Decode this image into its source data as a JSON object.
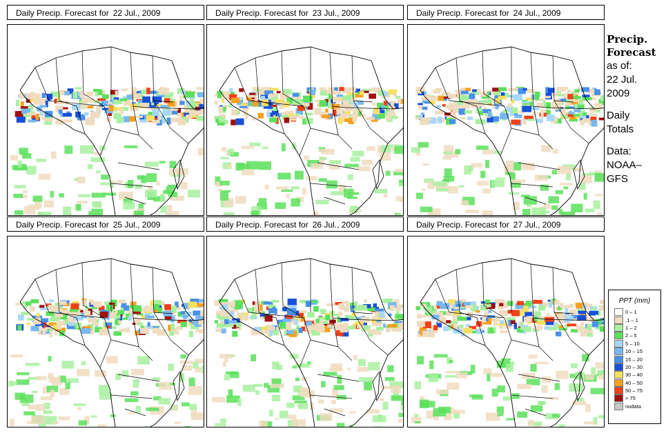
{
  "panel_title_prefix": "Daily Precip. Forecast for",
  "panels": [
    {
      "date": "22 Jul., 2009"
    },
    {
      "date": "23 Jul., 2009"
    },
    {
      "date": "24 Jul., 2009"
    },
    {
      "date": "25 Jul., 2009"
    },
    {
      "date": "26 Jul., 2009"
    },
    {
      "date": "27 Jul., 2009"
    }
  ],
  "side": {
    "heading_line1": "Precip.",
    "heading_line2": "Forecast",
    "asof_line1": "as of:",
    "asof_line2": "22 Jul.",
    "asof_line3": "2009",
    "daily_line1": "Daily",
    "daily_line2": "Totals",
    "data_line1": "Data:",
    "data_line2": "NOAA–",
    "data_line3": "GFS"
  },
  "legend": {
    "title": "PPT (mm)",
    "items": [
      {
        "label": "0 – 1",
        "color": "#ffffff"
      },
      {
        "label": ".1 – 1",
        "color": "#f0dcc0"
      },
      {
        "label": "1 – 2",
        "color": "#a8f0a0"
      },
      {
        "label": "2 – 5",
        "color": "#5ce05c"
      },
      {
        "label": "5 – 10",
        "color": "#a8d8f8"
      },
      {
        "label": "10 – 15",
        "color": "#78b8f0"
      },
      {
        "label": "15 – 20",
        "color": "#4890e8"
      },
      {
        "label": "20 – 30",
        "color": "#1850d8"
      },
      {
        "label": "30 – 40",
        "color": "#f8e060"
      },
      {
        "label": "40 – 50",
        "color": "#f8a020"
      },
      {
        "label": "50 – 75",
        "color": "#f04018"
      },
      {
        "label": "> 75",
        "color": "#a01010"
      },
      {
        "label": "nodata",
        "color": "#c8c8c8"
      }
    ]
  }
}
